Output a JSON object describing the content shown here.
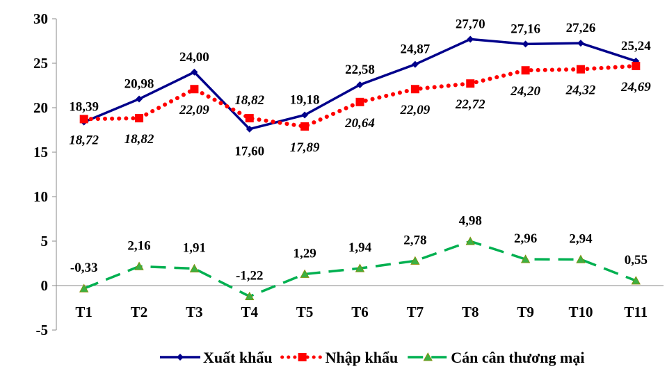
{
  "chart_data": {
    "type": "line",
    "title": "",
    "xlabel": "",
    "ylabel": "",
    "categories": [
      "T1",
      "T2",
      "T3",
      "T4",
      "T5",
      "T6",
      "T7",
      "T8",
      "T9",
      "T10",
      "T11"
    ],
    "ylim": [
      -5,
      30
    ],
    "yticks": [
      "-5",
      "0",
      "5",
      "10",
      "15",
      "20",
      "25",
      "30"
    ],
    "grid": false,
    "legend_position": "bottom",
    "series": [
      {
        "name": "Xuất khẩu",
        "color": "#00008B",
        "style": "solid",
        "marker": "diamond",
        "values": [
          18.39,
          20.98,
          24.0,
          17.6,
          19.18,
          22.58,
          24.87,
          27.7,
          27.16,
          27.26,
          25.24
        ],
        "labels": [
          "18,39",
          "20,98",
          "24,00",
          "17,60",
          "19,18",
          "22,58",
          "24,87",
          "27,70",
          "27,16",
          "27,26",
          "25,24"
        ]
      },
      {
        "name": "Nhập khẩu",
        "color": "#FF0000",
        "style": "dotted",
        "marker": "square",
        "values": [
          18.72,
          18.82,
          22.09,
          18.82,
          17.89,
          20.64,
          22.09,
          22.72,
          24.2,
          24.32,
          24.69
        ],
        "labels": [
          "18,72",
          "18,82",
          "22,09",
          "18,82",
          "17,89",
          "20,64",
          "22,09",
          "22,72",
          "24,20",
          "24,32",
          "24,69"
        ]
      },
      {
        "name": "Cán cân thương mại",
        "color": "#00B050",
        "style": "dashed",
        "marker": "triangle",
        "values": [
          -0.33,
          2.16,
          1.91,
          -1.22,
          1.29,
          1.94,
          2.78,
          4.98,
          2.96,
          2.94,
          0.55
        ],
        "labels": [
          "-0,33",
          "2,16",
          "1,91",
          "-1,22",
          "1,29",
          "1,94",
          "2,78",
          "4,98",
          "2,96",
          "2,94",
          "0,55"
        ]
      }
    ]
  }
}
